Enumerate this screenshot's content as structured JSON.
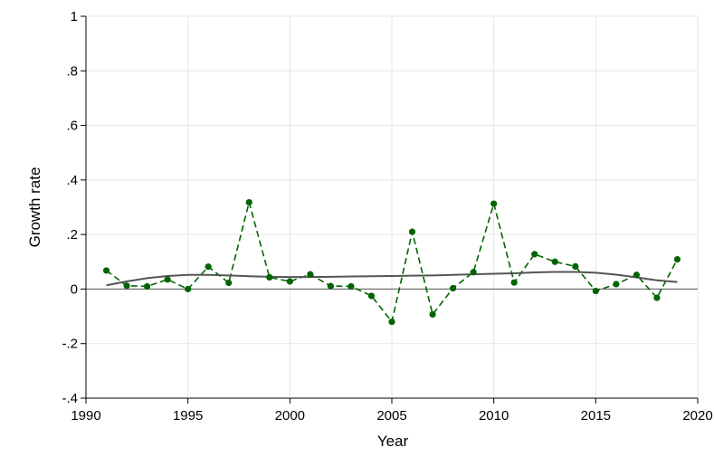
{
  "chart_data": {
    "type": "line",
    "title": "",
    "xlabel": "Year",
    "ylabel": "Growth rate",
    "xlim": [
      1990,
      2020
    ],
    "ylim": [
      -0.4,
      1.0
    ],
    "x_ticks": [
      1990,
      1995,
      2000,
      2005,
      2010,
      2015,
      2020
    ],
    "x_tick_labels": [
      "1990",
      "1995",
      "2000",
      "2005",
      "2010",
      "2015",
      "2020"
    ],
    "y_ticks": [
      -0.4,
      -0.2,
      0,
      0.2,
      0.4,
      0.6,
      0.8,
      1.0
    ],
    "y_tick_labels": [
      "-.4",
      "-.2",
      "0",
      ".2",
      ".4",
      ".6",
      ".8",
      "1"
    ],
    "grid": true,
    "reference_line_y": 0,
    "series": [
      {
        "style": "dashed-markers",
        "color": "#006400",
        "x": [
          1991,
          1992,
          1993,
          1994,
          1995,
          1996,
          1997,
          1998,
          1999,
          2000,
          2001,
          2002,
          2003,
          2004,
          2005,
          2006,
          2007,
          2008,
          2009,
          2010,
          2011,
          2012,
          2013,
          2014,
          2015,
          2016,
          2017,
          2018,
          2019
        ],
        "y": [
          0.068,
          0.012,
          0.01,
          0.035,
          0.0,
          0.082,
          0.023,
          0.318,
          0.043,
          0.028,
          0.054,
          0.011,
          0.01,
          -0.025,
          -0.12,
          0.21,
          -0.093,
          0.003,
          0.062,
          0.313,
          0.024,
          0.128,
          0.1,
          0.083,
          -0.007,
          0.018,
          0.052,
          -0.032,
          0.109
        ]
      },
      {
        "style": "smooth-line",
        "color": "#555555",
        "x": [
          1991,
          1992,
          1993,
          1994,
          1995,
          1996,
          1997,
          1998,
          1999,
          2000,
          2001,
          2002,
          2003,
          2004,
          2005,
          2006,
          2007,
          2008,
          2009,
          2010,
          2011,
          2012,
          2013,
          2014,
          2015,
          2016,
          2017,
          2018,
          2019
        ],
        "y": [
          0.014,
          0.028,
          0.04,
          0.048,
          0.052,
          0.052,
          0.05,
          0.047,
          0.045,
          0.044,
          0.044,
          0.045,
          0.046,
          0.047,
          0.048,
          0.049,
          0.05,
          0.052,
          0.054,
          0.056,
          0.058,
          0.061,
          0.063,
          0.063,
          0.06,
          0.053,
          0.043,
          0.032,
          0.026
        ]
      }
    ]
  }
}
